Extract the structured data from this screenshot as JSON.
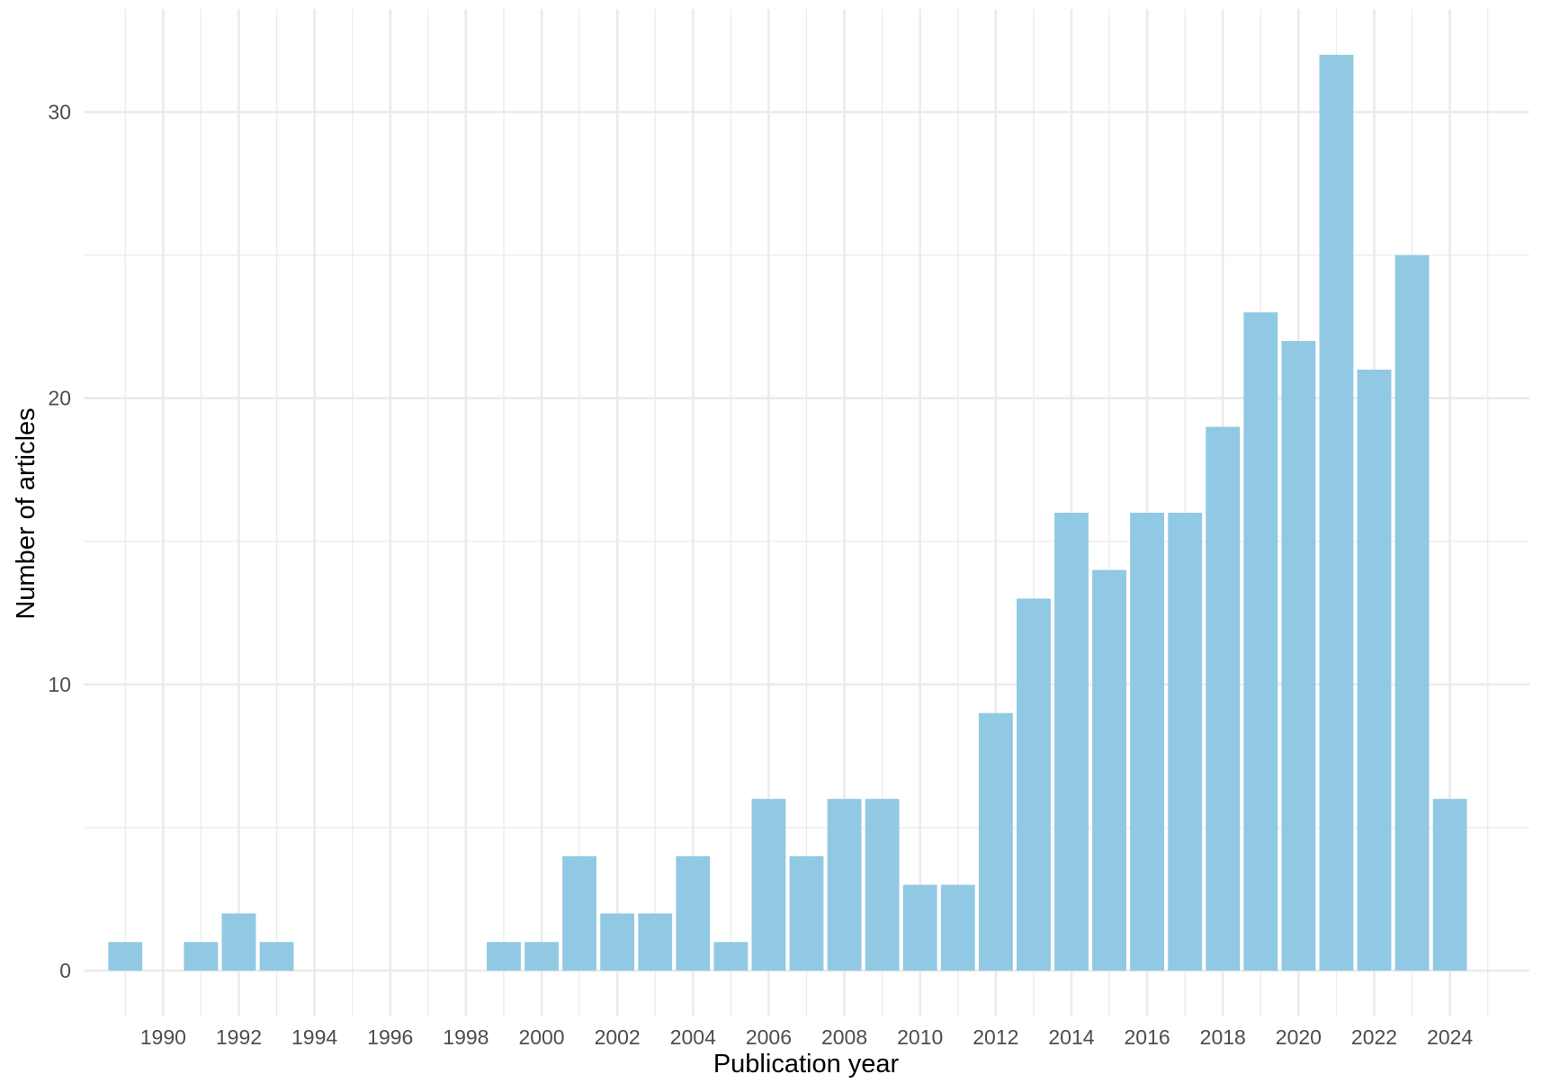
{
  "chart_data": {
    "type": "bar",
    "xlabel": "Publication year",
    "ylabel": "Number of articles",
    "x": [
      1989,
      1990,
      1991,
      1992,
      1993,
      1994,
      1995,
      1996,
      1997,
      1998,
      1999,
      2000,
      2001,
      2002,
      2003,
      2004,
      2005,
      2006,
      2007,
      2008,
      2009,
      2010,
      2011,
      2012,
      2013,
      2014,
      2015,
      2016,
      2017,
      2018,
      2019,
      2020,
      2021,
      2022,
      2023,
      2024
    ],
    "values": [
      1,
      0,
      1,
      2,
      1,
      0,
      0,
      0,
      0,
      0,
      1,
      1,
      4,
      2,
      2,
      4,
      1,
      6,
      4,
      6,
      6,
      3,
      3,
      9,
      13,
      16,
      14,
      16,
      16,
      19,
      23,
      22,
      32,
      21,
      25,
      6
    ],
    "x_ticks": [
      "1990",
      "1992",
      "1994",
      "1996",
      "1998",
      "2000",
      "2002",
      "2004",
      "2006",
      "2008",
      "2010",
      "2012",
      "2014",
      "2016",
      "2018",
      "2020",
      "2022",
      "2024"
    ],
    "y_ticks": [
      "0",
      "10",
      "20",
      "30"
    ],
    "xlim": [
      1987.9,
      2026.1
    ],
    "ylim": [
      -1.6,
      33.6
    ],
    "grid": true,
    "bar_color": "#91c9e4",
    "grid_color": "#ebebeb"
  }
}
